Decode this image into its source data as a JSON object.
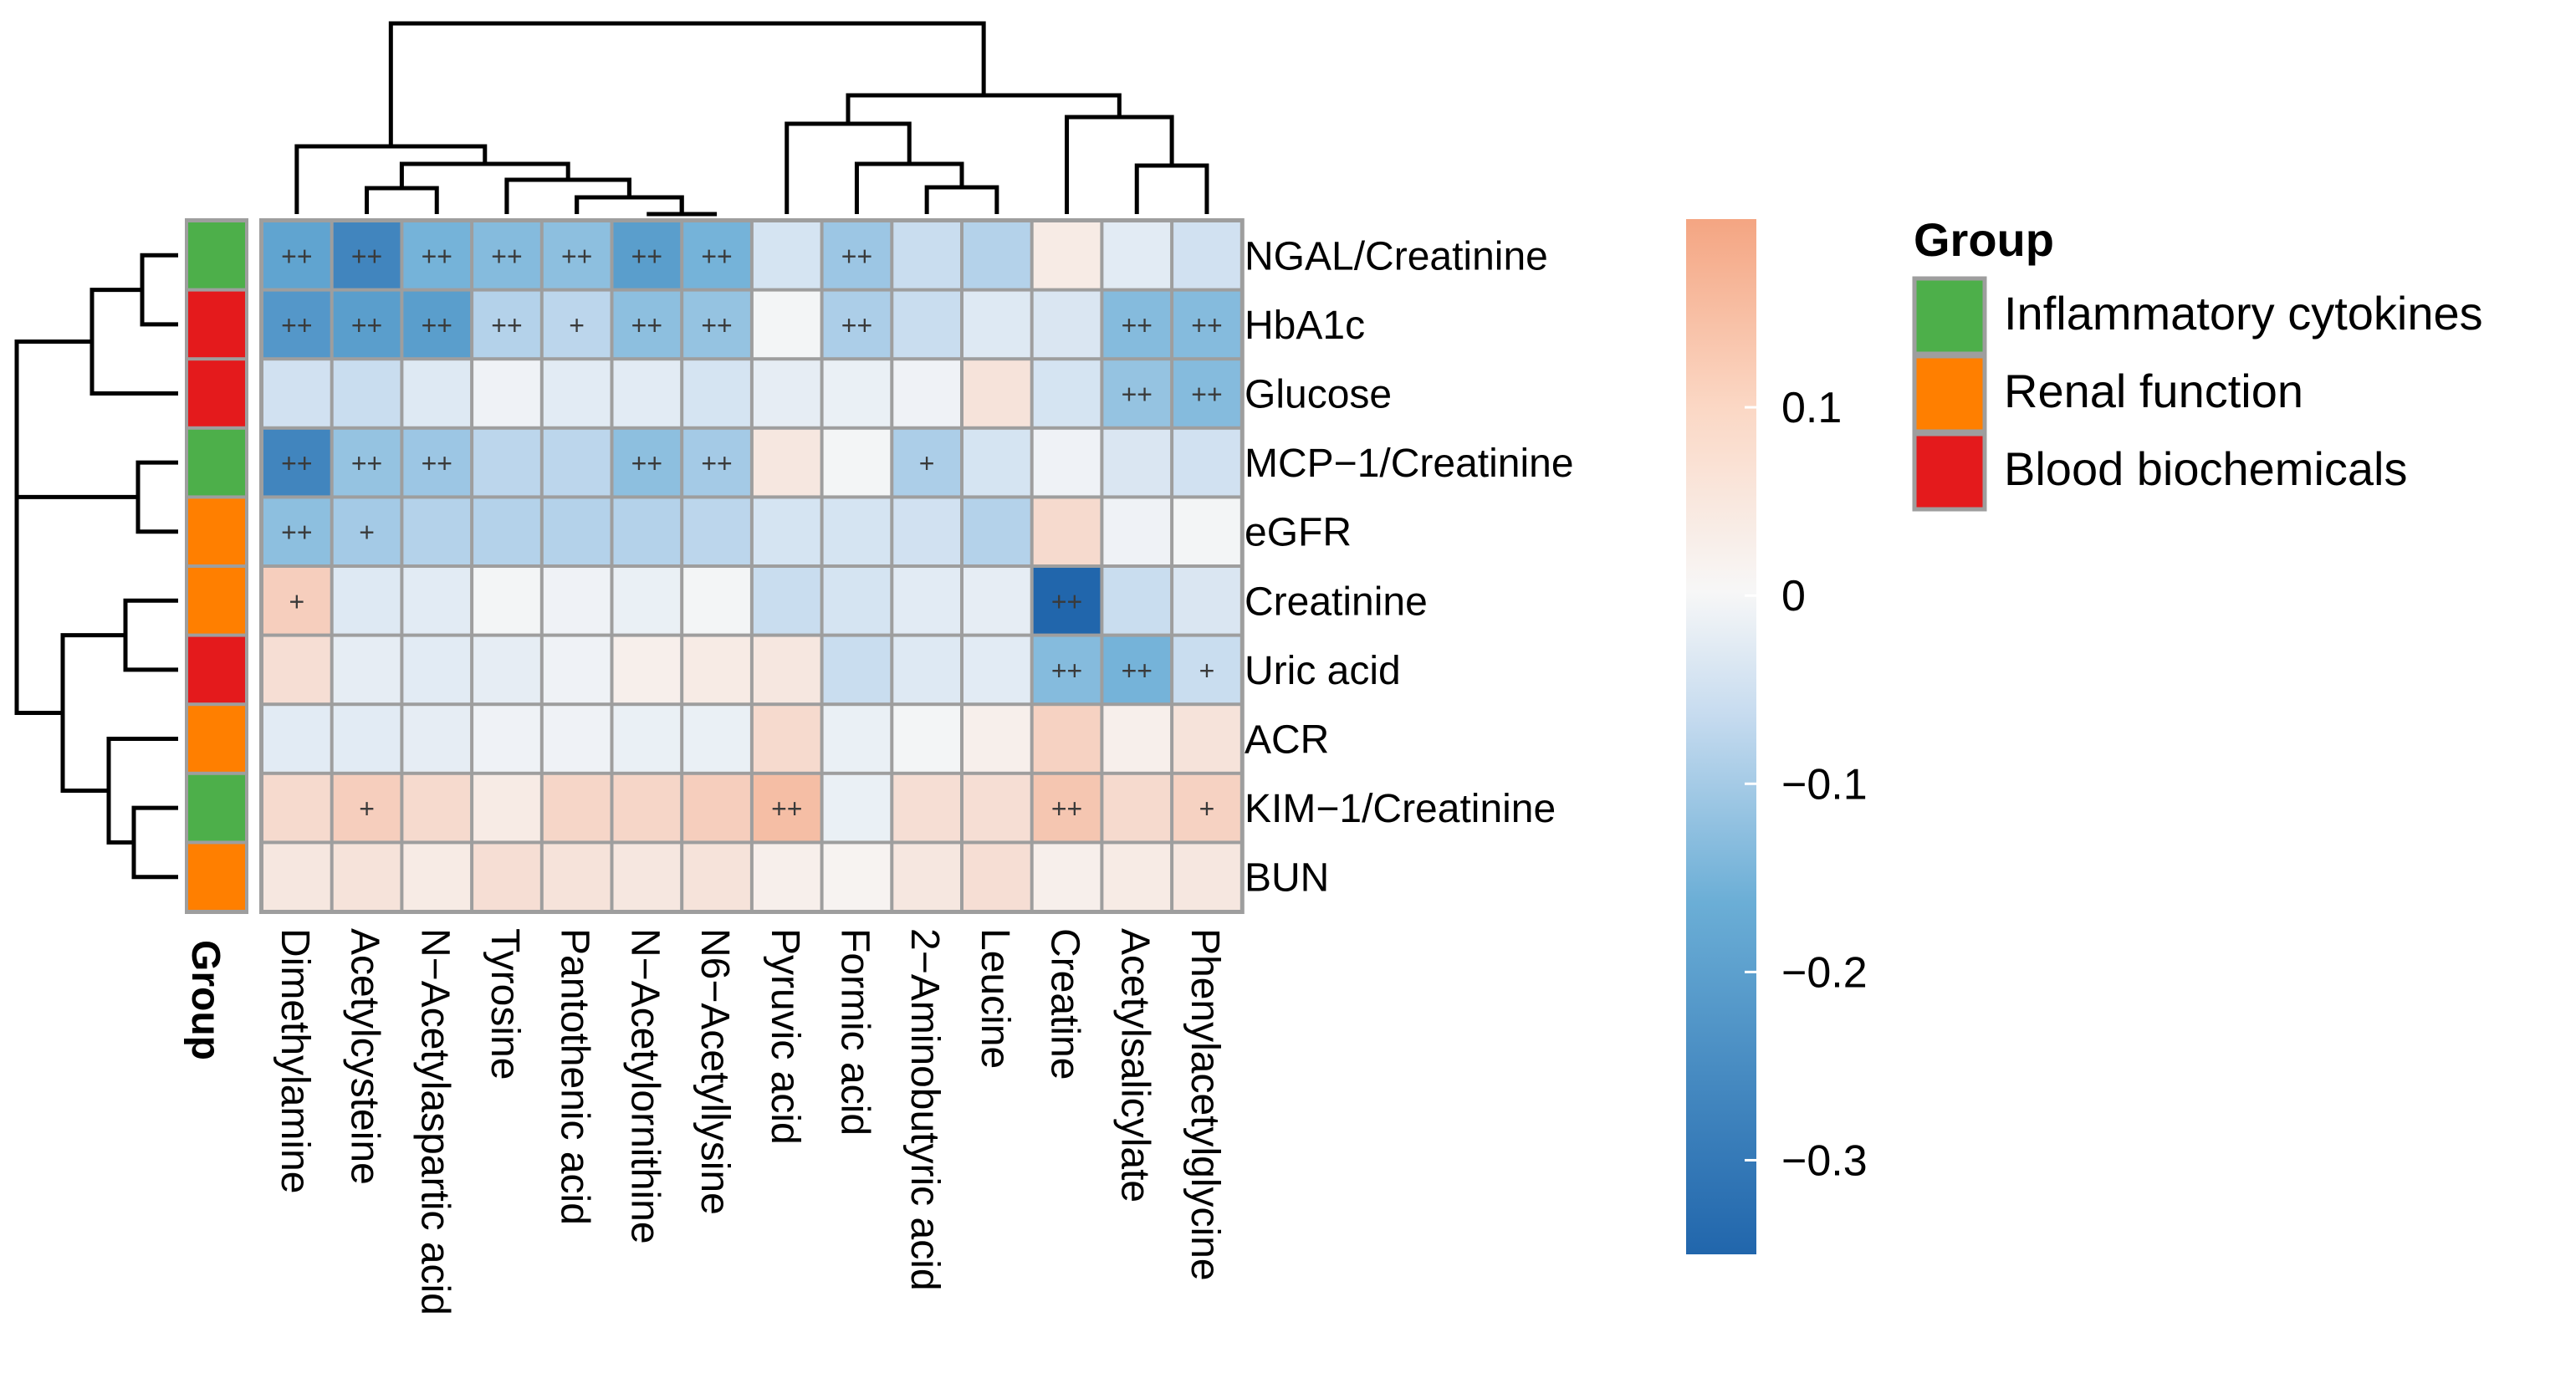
{
  "chart_data": {
    "type": "heatmap",
    "title": "",
    "rows": [
      "NGAL/Creatinine",
      "HbA1c",
      "Glucose",
      "MCP−1/Creatinine",
      "eGFR",
      "Creatinine",
      "Uric acid",
      "ACR",
      "KIM−1/Creatinine",
      "BUN"
    ],
    "row_groups": [
      "Inflammatory cytokines",
      "Blood biochemicals",
      "Blood biochemicals",
      "Inflammatory cytokines",
      "Renal function",
      "Renal function",
      "Blood biochemicals",
      "Renal function",
      "Inflammatory cytokines",
      "Renal function"
    ],
    "columns": [
      "Dimethylamine",
      "Acetylcysteine",
      "N−Acetylaspartic acid",
      "Tyrosine",
      "Pantothenic acid",
      "N−Acetylornithine",
      "N6−Acetyllysine",
      "Pyruvic acid",
      "Formic acid",
      "2−Aminobutyric acid",
      "Leucine",
      "Creatine",
      "Acetylsalicylate",
      "Phenylacetylglycine"
    ],
    "values": [
      [
        -0.25,
        -0.3,
        -0.22,
        -0.2,
        -0.19,
        -0.26,
        -0.22,
        -0.08,
        -0.17,
        -0.11,
        -0.14,
        0.03,
        -0.05,
        -0.09
      ],
      [
        -0.27,
        -0.26,
        -0.26,
        -0.14,
        -0.13,
        -0.19,
        -0.18,
        -0.01,
        -0.15,
        -0.11,
        -0.06,
        -0.07,
        -0.2,
        -0.2
      ],
      [
        -0.09,
        -0.11,
        -0.06,
        -0.02,
        -0.05,
        -0.05,
        -0.08,
        -0.04,
        -0.03,
        -0.02,
        0.05,
        -0.08,
        -0.18,
        -0.2
      ],
      [
        -0.3,
        -0.18,
        -0.17,
        -0.13,
        -0.13,
        -0.19,
        -0.16,
        0.04,
        -0.01,
        -0.15,
        -0.08,
        -0.02,
        -0.07,
        -0.09
      ],
      [
        -0.19,
        -0.16,
        -0.14,
        -0.14,
        -0.14,
        -0.14,
        -0.13,
        -0.08,
        -0.08,
        -0.09,
        -0.14,
        0.07,
        -0.02,
        -0.01
      ],
      [
        0.1,
        -0.06,
        -0.05,
        -0.01,
        -0.02,
        -0.03,
        -0.01,
        -0.11,
        -0.08,
        -0.05,
        -0.04,
        -0.35,
        -0.11,
        -0.07
      ],
      [
        0.06,
        -0.04,
        -0.05,
        -0.04,
        -0.02,
        0.02,
        0.03,
        0.04,
        -0.11,
        -0.06,
        -0.05,
        -0.2,
        -0.22,
        -0.11
      ],
      [
        -0.05,
        -0.05,
        -0.04,
        -0.02,
        -0.02,
        -0.03,
        -0.03,
        0.07,
        -0.03,
        -0.01,
        0.02,
        0.09,
        0.02,
        0.05
      ],
      [
        0.07,
        0.1,
        0.07,
        0.03,
        0.08,
        0.08,
        0.1,
        0.14,
        -0.03,
        0.06,
        0.06,
        0.12,
        0.07,
        0.09
      ],
      [
        0.04,
        0.05,
        0.03,
        0.06,
        0.05,
        0.04,
        0.05,
        0.02,
        0.01,
        0.04,
        0.06,
        0.02,
        0.03,
        0.04
      ]
    ],
    "significance": [
      [
        "++",
        "++",
        "++",
        "++",
        "++",
        "++",
        "++",
        "",
        "++",
        "",
        "",
        "",
        "",
        ""
      ],
      [
        "++",
        "++",
        "++",
        "++",
        "+",
        "++",
        "++",
        "",
        "++",
        "",
        "",
        "",
        "++",
        "++"
      ],
      [
        "",
        "",
        "",
        "",
        "",
        "",
        "",
        "",
        "",
        "",
        "",
        "",
        "++",
        "++"
      ],
      [
        "++",
        "++",
        "++",
        "",
        "",
        "++",
        "++",
        "",
        "",
        "+",
        "",
        "",
        "",
        ""
      ],
      [
        "++",
        "+",
        "",
        "",
        "",
        "",
        "",
        "",
        "",
        "",
        "",
        "",
        "",
        ""
      ],
      [
        "+",
        "",
        "",
        "",
        "",
        "",
        "",
        "",
        "",
        "",
        "",
        "++",
        "",
        ""
      ],
      [
        "",
        "",
        "",
        "",
        "",
        "",
        "",
        "",
        "",
        "",
        "",
        "++",
        "++",
        "+"
      ],
      [
        "",
        "",
        "",
        "",
        "",
        "",
        "",
        "",
        "",
        "",
        "",
        "",
        "",
        ""
      ],
      [
        "",
        "+",
        "",
        "",
        "",
        "",
        "",
        "++",
        "",
        "",
        "",
        "++",
        "",
        "+"
      ],
      [
        "",
        "",
        "",
        "",
        "",
        "",
        "",
        "",
        "",
        "",
        "",
        "",
        "",
        ""
      ]
    ],
    "color_scale": {
      "min": -0.35,
      "max": 0.2,
      "low": "#2166ac",
      "mid": "#f7f7f7",
      "high": "#f4a582",
      "ticks": [
        0.1,
        0,
        -0.1,
        -0.2,
        -0.3
      ]
    },
    "colorbar_tick_labels": [
      "0.1",
      "0",
      "−0.1",
      "−0.2",
      "−0.3"
    ],
    "group_axis_label": "Group",
    "legend": {
      "title": "Group",
      "items": [
        {
          "label": "Inflammatory cytokines",
          "color": "#4daf4a"
        },
        {
          "label": "Renal function",
          "color": "#ff7f00"
        },
        {
          "label": "Blood biochemicals",
          "color": "#e41a1c"
        }
      ]
    }
  }
}
